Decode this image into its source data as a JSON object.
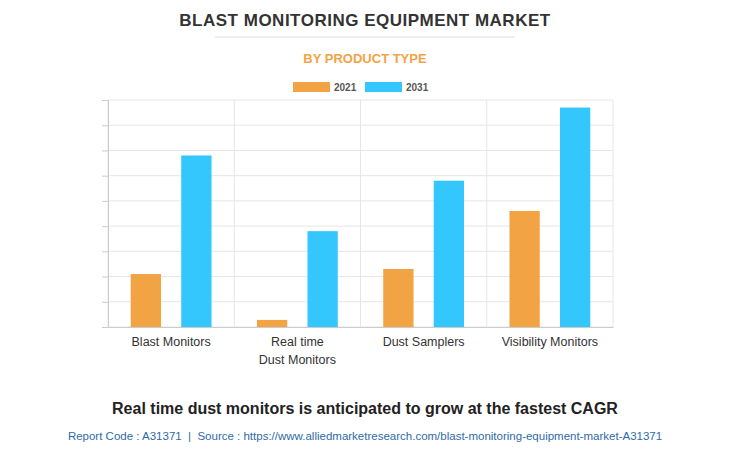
{
  "chart_data": {
    "type": "bar",
    "title": "BLAST MONITORING EQUIPMENT MARKET",
    "subtitle": "BY PRODUCT TYPE",
    "annotation": "Real time dust monitors is anticipated to grow at the fastest CAGR",
    "footer": "Report Code : A31371  |  Source : https://www.alliedmarketresearch.com/blast-monitoring-equipment-market-A31371",
    "categories": [
      "Blast Monitors",
      "Real time\nDust Monitors",
      "Dust Samplers",
      "Visibility Monitors"
    ],
    "series": [
      {
        "name": "2021",
        "color": "#f2a444",
        "values": [
          2.1,
          0.28,
          2.3,
          4.6
        ]
      },
      {
        "name": "2031",
        "color": "#33c7fd",
        "values": [
          6.8,
          3.8,
          5.8,
          8.7
        ]
      }
    ],
    "ylim": [
      0,
      9
    ],
    "yticks": [
      0,
      1,
      2,
      3,
      4,
      5,
      6,
      7,
      8,
      9
    ],
    "grid": true,
    "legend": "top",
    "tick_labels": "x"
  }
}
